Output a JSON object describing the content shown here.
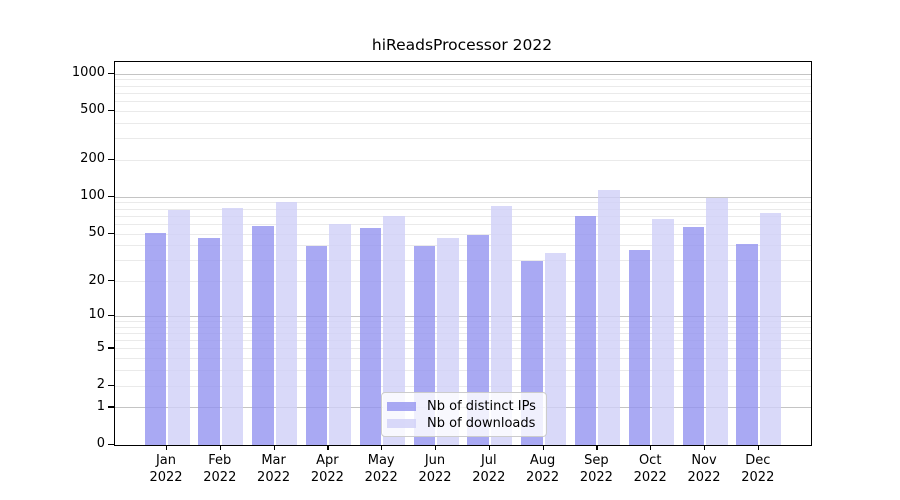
{
  "title": "hiReadsProcessor 2022",
  "chart_data": {
    "type": "bar",
    "title": "hiReadsProcessor 2022",
    "categories": [
      "Jan",
      "Feb",
      "Mar",
      "Apr",
      "May",
      "Jun",
      "Jul",
      "Aug",
      "Sep",
      "Oct",
      "Nov",
      "Dec"
    ],
    "category_year": "2022",
    "series": [
      {
        "name": "Nb of distinct IPs",
        "color": "#9393f0",
        "alpha": 0.8,
        "values": [
          51,
          46,
          58,
          40,
          56,
          40,
          49,
          30,
          71,
          37,
          57,
          41
        ]
      },
      {
        "name": "Nb of downloads",
        "color": "#d0d0f8",
        "alpha": 0.8,
        "values": [
          79,
          82,
          92,
          60,
          71,
          46,
          85,
          35,
          115,
          67,
          99,
          75
        ]
      }
    ],
    "yscale": "log1p",
    "ylim": [
      0,
      1259
    ],
    "yticks": [
      0,
      1,
      2,
      5,
      10,
      20,
      50,
      100,
      200,
      500,
      1000
    ],
    "grid": {
      "major_lines": [
        1,
        10,
        100,
        1000
      ],
      "minor_decades": [
        1,
        10,
        100
      ],
      "major_color": "#c4c4c4",
      "minor_color": "#eaeaea"
    },
    "legend_position": "inside-bottom-center",
    "xlabel": "",
    "ylabel": ""
  }
}
